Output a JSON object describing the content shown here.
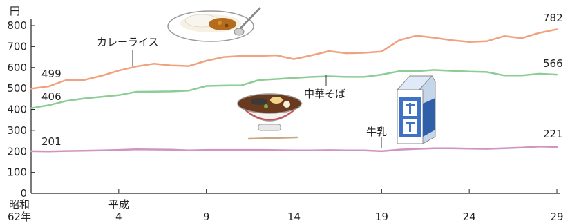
{
  "chart_data": {
    "type": "line",
    "ylabel": "円",
    "ylim": [
      0,
      800
    ],
    "yticks": [
      0,
      100,
      200,
      300,
      400,
      500,
      600,
      700,
      800
    ],
    "x": [
      62,
      63,
      1,
      2,
      3,
      4,
      5,
      6,
      7,
      8,
      9,
      10,
      11,
      12,
      13,
      14,
      15,
      16,
      17,
      18,
      19,
      20,
      21,
      22,
      23,
      24,
      25,
      26,
      27,
      28,
      29
    ],
    "x_ticks": [
      {
        "index": 0,
        "lines": [
          "昭和",
          "62年"
        ]
      },
      {
        "index": 5,
        "lines": [
          "平成",
          "4"
        ]
      },
      {
        "index": 10,
        "lines": [
          "",
          "9"
        ]
      },
      {
        "index": 15,
        "lines": [
          "",
          "14"
        ]
      },
      {
        "index": 20,
        "lines": [
          "",
          "19"
        ]
      },
      {
        "index": 25,
        "lines": [
          "",
          "24"
        ]
      },
      {
        "index": 30,
        "lines": [
          "",
          "29"
        ]
      }
    ],
    "series": [
      {
        "name": "カレーライス",
        "color": "#f0a27e",
        "values": [
          499,
          510,
          540,
          540,
          560,
          585,
          605,
          618,
          610,
          607,
          632,
          650,
          655,
          655,
          658,
          640,
          658,
          678,
          668,
          670,
          676,
          730,
          752,
          742,
          730,
          722,
          725,
          750,
          740,
          765,
          782
        ],
        "label_first": "499",
        "label_last": "782"
      },
      {
        "name": "中華そば",
        "color": "#8ccc95",
        "values": [
          406,
          420,
          440,
          452,
          460,
          468,
          484,
          485,
          486,
          490,
          512,
          514,
          515,
          540,
          545,
          550,
          555,
          558,
          555,
          555,
          566,
          582,
          582,
          588,
          584,
          580,
          578,
          562,
          562,
          570,
          566
        ],
        "label_first": "406",
        "label_last": "566"
      },
      {
        "name": "牛乳",
        "color": "#cf94c2",
        "values": [
          201,
          200,
          202,
          203,
          205,
          207,
          210,
          209,
          208,
          205,
          207,
          207,
          207,
          207,
          206,
          205,
          205,
          206,
          205,
          205,
          201,
          208,
          212,
          215,
          215,
          213,
          212,
          215,
          218,
          223,
          221
        ],
        "label_first": "201",
        "label_last": "221"
      }
    ]
  },
  "icons": [
    "curry-rice-plate-icon",
    "ramen-bowl-icon",
    "milk-carton-icon"
  ]
}
